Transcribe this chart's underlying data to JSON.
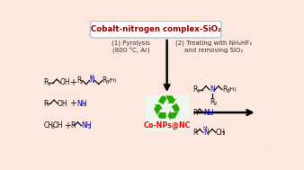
{
  "bg_color": "#fce8df",
  "border_color": "#e8a898",
  "title_box_color": "#ffffff",
  "title_border_color": "#b0c4d8",
  "title_text": "Cobalt-nitrogen complex-SiO₂",
  "title_color": "#8b0000",
  "step1_text": "(1) Pyrolysis\n(800 °C, Ar)",
  "step2_text": "(2) Treating with NH₄HF₂\nand removing SiO₂",
  "catalyst_text": "Co-NPs@NC",
  "catalyst_color": "#ff0000",
  "blue_color": "#0000bb",
  "green_color": "#22aa00",
  "text_color": "#111111"
}
